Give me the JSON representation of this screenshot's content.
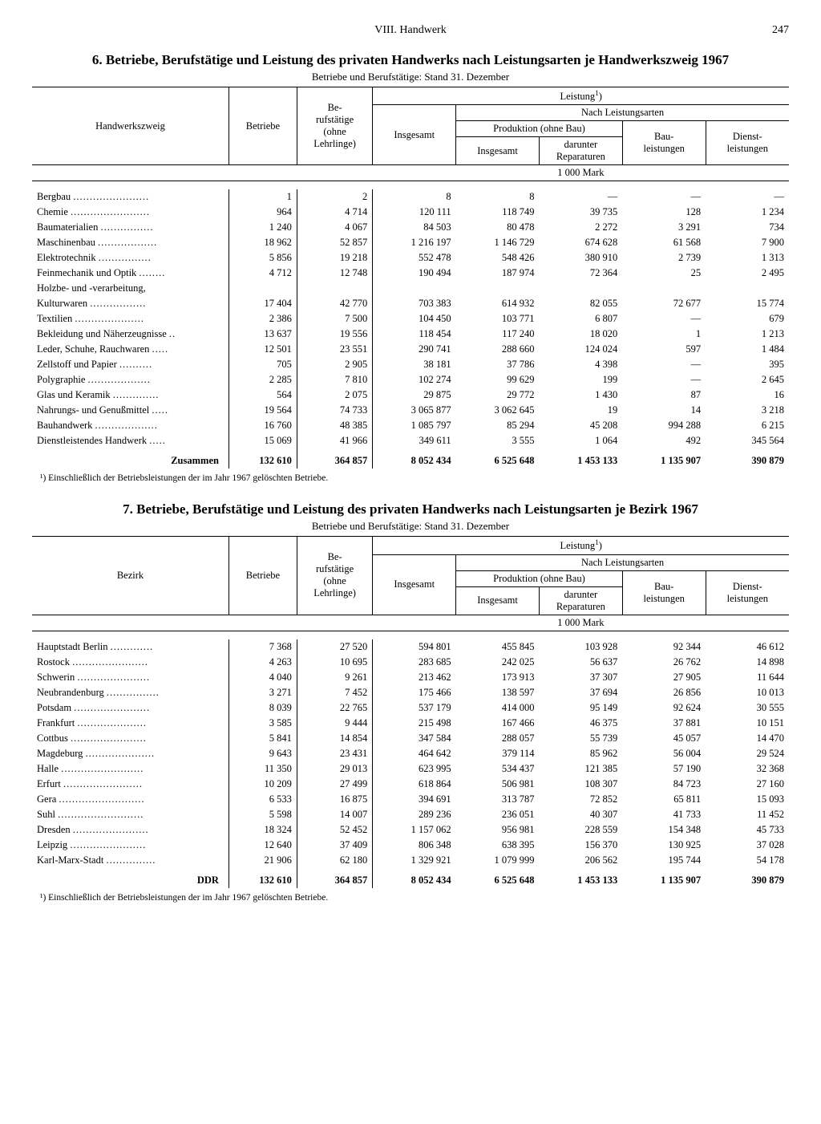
{
  "header": {
    "section": "VIII. Handwerk",
    "page": "247"
  },
  "table6": {
    "title": "6. Betriebe, Berufstätige und Leistung des privaten Handwerks nach Leistungsarten je Handwerkszweig 1967",
    "subtitle": "Betriebe und Berufstätige: Stand 31. Dezember",
    "col_label": "Handwerkszweig",
    "header_cols": {
      "betriebe": "Betriebe",
      "berufs": "Be-\nrufstätige\n(ohne\nLehrlinge)",
      "leistung": "Leistung",
      "insgesamt": "Insgesamt",
      "nach": "Nach Leistungsarten",
      "prod": "Produktion (ohne Bau)",
      "darunter": "darunter\nReparaturen",
      "bau": "Bau-\nleistungen",
      "dienst": "Dienst-\nleistungen",
      "unit": "1 000 Mark"
    },
    "rows": [
      {
        "label": "Bergbau",
        "v": [
          "1",
          "2",
          "8",
          "8",
          "—",
          "—",
          "—"
        ]
      },
      {
        "label": "Chemie",
        "v": [
          "964",
          "4 714",
          "120 111",
          "118 749",
          "39 735",
          "128",
          "1 234"
        ]
      },
      {
        "label": "Baumaterialien",
        "v": [
          "1 240",
          "4 067",
          "84 503",
          "80 478",
          "2 272",
          "3 291",
          "734"
        ]
      },
      {
        "label": "Maschinenbau",
        "v": [
          "18 962",
          "52 857",
          "1 216 197",
          "1 146 729",
          "674 628",
          "61 568",
          "7 900"
        ]
      },
      {
        "label": "Elektrotechnik",
        "v": [
          "5 856",
          "19 218",
          "552 478",
          "548 426",
          "380 910",
          "2 739",
          "1 313"
        ]
      },
      {
        "label": "Feinmechanik und Optik",
        "v": [
          "4 712",
          "12 748",
          "190 494",
          "187 974",
          "72 364",
          "25",
          "2 495"
        ]
      },
      {
        "label": "Holzbe- und -verarbeitung,",
        "v": [
          "",
          "",
          "",
          "",
          "",
          "",
          ""
        ],
        "nodots": true
      },
      {
        "label": "  Kulturwaren",
        "v": [
          "17 404",
          "42 770",
          "703 383",
          "614 932",
          "82 055",
          "72 677",
          "15 774"
        ]
      },
      {
        "label": "Textilien",
        "v": [
          "2 386",
          "7 500",
          "104 450",
          "103 771",
          "6 807",
          "—",
          "679"
        ]
      },
      {
        "label": "Bekleidung und Näherzeugnisse",
        "v": [
          "13 637",
          "19 556",
          "118 454",
          "117 240",
          "18 020",
          "1",
          "1 213"
        ]
      },
      {
        "label": "Leder, Schuhe, Rauchwaren",
        "v": [
          "12 501",
          "23 551",
          "290 741",
          "288 660",
          "124 024",
          "597",
          "1 484"
        ]
      },
      {
        "label": "Zellstoff und Papier",
        "v": [
          "705",
          "2 905",
          "38 181",
          "37 786",
          "4 398",
          "—",
          "395"
        ]
      },
      {
        "label": "Polygraphie",
        "v": [
          "2 285",
          "7 810",
          "102 274",
          "99 629",
          "199",
          "—",
          "2 645"
        ]
      },
      {
        "label": "Glas und Keramik",
        "v": [
          "564",
          "2 075",
          "29 875",
          "29 772",
          "1 430",
          "87",
          "16"
        ]
      },
      {
        "label": "Nahrungs- und Genußmittel",
        "v": [
          "19 564",
          "74 733",
          "3 065 877",
          "3 062 645",
          "19",
          "14",
          "3 218"
        ]
      },
      {
        "label": "Bauhandwerk",
        "v": [
          "16 760",
          "48 385",
          "1 085 797",
          "85 294",
          "45 208",
          "994 288",
          "6 215"
        ]
      },
      {
        "label": "Dienstleistendes Handwerk",
        "v": [
          "15 069",
          "41 966",
          "349 611",
          "3 555",
          "1 064",
          "492",
          "345 564"
        ]
      }
    ],
    "total": {
      "label": "Zusammen",
      "v": [
        "132 610",
        "364 857",
        "8 052 434",
        "6 525 648",
        "1 453 133",
        "1 135 907",
        "390 879"
      ]
    },
    "footnote": "¹) Einschließlich der Betriebsleistungen der im Jahr 1967 gelöschten Betriebe."
  },
  "table7": {
    "title": "7. Betriebe, Berufstätige und Leistung des privaten Handwerks nach Leistungsarten je Bezirk 1967",
    "subtitle": "Betriebe und Berufstätige: Stand 31. Dezember",
    "col_label": "Bezirk",
    "rows": [
      {
        "label": "Hauptstadt Berlin",
        "v": [
          "7 368",
          "27 520",
          "594 801",
          "455 845",
          "103 928",
          "92 344",
          "46 612"
        ]
      },
      {
        "label": "Rostock",
        "v": [
          "4 263",
          "10 695",
          "283 685",
          "242 025",
          "56 637",
          "26 762",
          "14 898"
        ]
      },
      {
        "label": "Schwerin",
        "v": [
          "4 040",
          "9 261",
          "213 462",
          "173 913",
          "37 307",
          "27 905",
          "11 644"
        ]
      },
      {
        "label": "Neubrandenburg",
        "v": [
          "3 271",
          "7 452",
          "175 466",
          "138 597",
          "37 694",
          "26 856",
          "10 013"
        ]
      },
      {
        "label": "Potsdam",
        "v": [
          "8 039",
          "22 765",
          "537 179",
          "414 000",
          "95 149",
          "92 624",
          "30 555"
        ]
      },
      {
        "label": "Frankfurt",
        "v": [
          "3 585",
          "9 444",
          "215 498",
          "167 466",
          "46 375",
          "37 881",
          "10 151"
        ]
      },
      {
        "label": "Cottbus",
        "v": [
          "5 841",
          "14 854",
          "347 584",
          "288 057",
          "55 739",
          "45 057",
          "14 470"
        ]
      },
      {
        "label": "Magdeburg",
        "v": [
          "9 643",
          "23 431",
          "464 642",
          "379 114",
          "85 962",
          "56 004",
          "29 524"
        ]
      },
      {
        "label": "Halle",
        "v": [
          "11 350",
          "29 013",
          "623 995",
          "534 437",
          "121 385",
          "57 190",
          "32 368"
        ]
      },
      {
        "label": "Erfurt",
        "v": [
          "10 209",
          "27 499",
          "618 864",
          "506 981",
          "108 307",
          "84 723",
          "27 160"
        ]
      },
      {
        "label": "Gera",
        "v": [
          "6 533",
          "16 875",
          "394 691",
          "313 787",
          "72 852",
          "65 811",
          "15 093"
        ]
      },
      {
        "label": "Suhl",
        "v": [
          "5 598",
          "14 007",
          "289 236",
          "236 051",
          "40 307",
          "41 733",
          "11 452"
        ]
      },
      {
        "label": "Dresden",
        "v": [
          "18 324",
          "52 452",
          "1 157 062",
          "956 981",
          "228 559",
          "154 348",
          "45 733"
        ]
      },
      {
        "label": "Leipzig",
        "v": [
          "12 640",
          "37 409",
          "806 348",
          "638 395",
          "156 370",
          "130 925",
          "37 028"
        ]
      },
      {
        "label": "Karl-Marx-Stadt",
        "v": [
          "21 906",
          "62 180",
          "1 329 921",
          "1 079 999",
          "206 562",
          "195 744",
          "54 178"
        ]
      }
    ],
    "total": {
      "label": "DDR",
      "v": [
        "132 610",
        "364 857",
        "8 052 434",
        "6 525 648",
        "1 453 133",
        "1 135 907",
        "390 879"
      ]
    },
    "footnote": "¹) Einschließlich der Betriebsleistungen der im Jahr 1967 gelöschten Betriebe."
  },
  "style": {
    "col_widths_pct": [
      26,
      9,
      10,
      11,
      11,
      11,
      11,
      11
    ],
    "label_col_width_pct": 26
  }
}
